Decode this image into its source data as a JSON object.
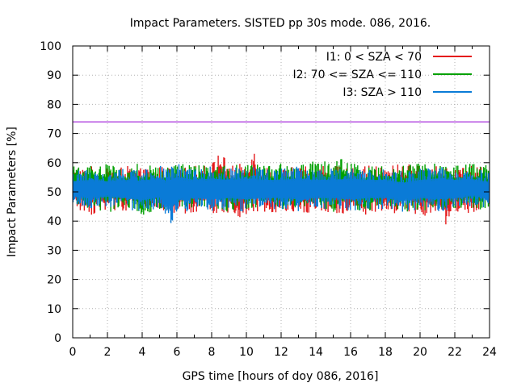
{
  "chart_data": {
    "type": "line",
    "title": "Impact Parameters. SISTED pp 30s mode. 086, 2016.",
    "xlabel": "GPS time [hours of doy 086, 2016]",
    "ylabel": "Impact Parameters [%]",
    "xlim": [
      0,
      24
    ],
    "ylim": [
      0,
      100
    ],
    "xticks": [
      "0",
      "2",
      "4",
      "6",
      "8",
      "10",
      "12",
      "14",
      "16",
      "18",
      "20",
      "22",
      "24"
    ],
    "yticks": [
      "0",
      "10",
      "20",
      "30",
      "40",
      "50",
      "60",
      "70",
      "80",
      "90",
      "100"
    ],
    "grid": true,
    "legend_position": "top-right",
    "reference_line": {
      "y": 74,
      "color": "#9400d3"
    },
    "series": [
      {
        "name": "I1: 0 < SZA < 70",
        "color": "#e41a1c",
        "envelope": {
          "x": [
            0,
            1,
            2,
            3,
            4,
            5,
            6,
            7,
            8,
            8.5,
            9,
            10,
            10.3,
            11,
            12,
            13,
            14,
            15,
            16,
            17,
            18,
            19,
            20,
            21,
            21.6,
            22,
            23,
            24
          ],
          "high": [
            58,
            59,
            58,
            59,
            58,
            59,
            58,
            59,
            60,
            65,
            59,
            60,
            67,
            59,
            58,
            59,
            60,
            59,
            58,
            59,
            59,
            60,
            59,
            59,
            58,
            60,
            59,
            58
          ],
          "low": [
            44,
            42,
            44,
            43,
            44,
            43,
            42,
            43,
            42,
            43,
            42,
            41,
            42,
            43,
            43,
            42,
            43,
            42,
            43,
            42,
            42,
            43,
            42,
            41,
            38,
            42,
            43,
            44
          ]
        }
      },
      {
        "name": "I2: 70 <= SZA <= 110",
        "color": "#00a000",
        "envelope": {
          "x": [
            0,
            1,
            2,
            3,
            4,
            5,
            6,
            7,
            8,
            9,
            10,
            11,
            12,
            13,
            14,
            15,
            15.2,
            16,
            17,
            18,
            19,
            20,
            21,
            22,
            23,
            24
          ],
          "high": [
            59,
            60,
            60,
            59,
            60,
            59,
            60,
            59,
            60,
            59,
            60,
            59,
            60,
            59,
            61,
            60,
            62,
            60,
            59,
            60,
            59,
            60,
            61,
            59,
            60,
            59
          ],
          "low": [
            45,
            44,
            43,
            44,
            42,
            44,
            43,
            44,
            44,
            43,
            44,
            45,
            44,
            43,
            44,
            43,
            44,
            44,
            43,
            44,
            43,
            44,
            43,
            44,
            43,
            44
          ]
        }
      },
      {
        "name": "I3: SZA > 110",
        "color": "#0a7bd7",
        "envelope": {
          "x": [
            0,
            1,
            2,
            3,
            4,
            5,
            5.5,
            6,
            7,
            8,
            9,
            10,
            11,
            12,
            13,
            14,
            15,
            16,
            17,
            18,
            19,
            20,
            21,
            22,
            23,
            24
          ],
          "high": [
            57,
            58,
            57,
            58,
            58,
            59,
            59,
            60,
            58,
            59,
            58,
            59,
            58,
            58,
            59,
            58,
            58,
            59,
            58,
            58,
            57,
            58,
            59,
            58,
            58,
            57
          ],
          "low": [
            45,
            44,
            45,
            44,
            43,
            44,
            38,
            42,
            44,
            43,
            44,
            43,
            44,
            44,
            43,
            44,
            44,
            43,
            44,
            44,
            43,
            44,
            43,
            44,
            45,
            44
          ]
        }
      }
    ]
  }
}
